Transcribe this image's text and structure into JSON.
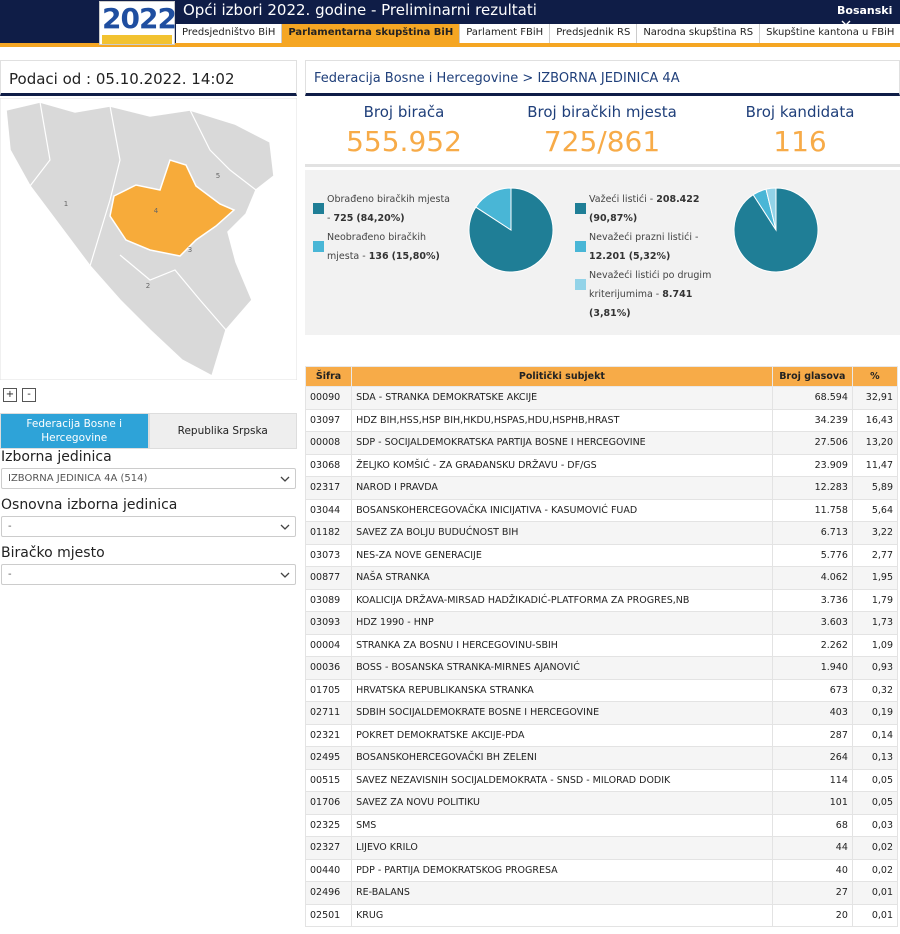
{
  "header": {
    "logo_year": "2022",
    "title": "Opći izbori 2022. godine - Preliminarni rezultati",
    "language": "Bosanski"
  },
  "tabs": [
    "Predsjedništvo BiH",
    "Parlamentarna skupština BiH",
    "Parlament FBiH",
    "Predsjednik RS",
    "Narodna skupština RS",
    "Skupštine kantona u FBiH"
  ],
  "active_tab": 1,
  "sidebar": {
    "data_as_of": "Podaci od : 05.10.2022. 14:02",
    "map_labels": [
      "1",
      "4",
      "3",
      "2",
      "5"
    ],
    "zoom_in": "+",
    "zoom_out": "-",
    "entities": [
      "Federacija Bosne i Hercegovine",
      "Republika Srpska"
    ],
    "filters": [
      {
        "label": "Izborna jedinica",
        "value": "IZBORNA JEDINICA 4A (514)"
      },
      {
        "label": "Osnovna izborna jedinica",
        "value": "-"
      },
      {
        "label": "Biračko mjesto",
        "value": "-"
      }
    ]
  },
  "main": {
    "breadcrumb": "Federacija Bosne i Hercegovine > IZBORNA JEDINICA 4A",
    "stats": [
      {
        "label": "Broj birača",
        "value": "555.952"
      },
      {
        "label": "Broj biračkih mjesta",
        "value": "725/861"
      },
      {
        "label": "Broj kandidata",
        "value": "116"
      }
    ],
    "pies": [
      {
        "slices": [
          {
            "name": "Obrađeno biračkih mjesta -",
            "count": "725",
            "percent": 84.2,
            "percent_label": "(84,20%)",
            "color": "#1f7e96"
          },
          {
            "name": "Neobrađeno biračkih mjesta -",
            "count": "136",
            "percent": 15.8,
            "percent_label": "(15,80%)",
            "color": "#49b6d6"
          }
        ]
      },
      {
        "slices": [
          {
            "name": "Važeći listići -",
            "count": "208.422",
            "percent": 90.87,
            "percent_label": "(90,87%)",
            "color": "#1f7e96"
          },
          {
            "name": "Nevažeći prazni listići -",
            "count": "12.201",
            "percent": 5.32,
            "percent_label": "(5,32%)",
            "color": "#49b6d6"
          },
          {
            "name": "Nevažeći listići po drugim kriterijumima -",
            "count": "8.741",
            "percent": 3.81,
            "percent_label": "(3,81%)",
            "color": "#93d3e8"
          }
        ]
      }
    ]
  },
  "table": {
    "columns": [
      "Šifra",
      "Politički subjekt",
      "Broj glasova",
      "%"
    ],
    "rows": [
      [
        "00090",
        "SDA - STRANKA DEMOKRATSKE AKCIJE",
        "68.594",
        "32,91"
      ],
      [
        "03097",
        "HDZ BIH,HSS,HSP BIH,HKDU,HSPAS,HDU,HSPHB,HRAST",
        "34.239",
        "16,43"
      ],
      [
        "00008",
        "SDP - SOCIJALDEMOKRATSKA PARTIJA BOSNE I HERCEGOVINE",
        "27.506",
        "13,20"
      ],
      [
        "03068",
        "ŽELJKO KOMŠIĆ - ZA GRAĐANSKU DRŽAVU - DF/GS",
        "23.909",
        "11,47"
      ],
      [
        "02317",
        "NAROD I PRAVDA",
        "12.283",
        "5,89"
      ],
      [
        "03044",
        "BOSANSKOHERCEGOVAČKA INICIJATIVA - KASUMOVIĆ FUAD",
        "11.758",
        "5,64"
      ],
      [
        "01182",
        "SAVEZ ZA BOLJU BUDUĆNOST BIH",
        "6.713",
        "3,22"
      ],
      [
        "03073",
        "NES-ZA NOVE GENERACIJE",
        "5.776",
        "2,77"
      ],
      [
        "00877",
        "NAŠA STRANKA",
        "4.062",
        "1,95"
      ],
      [
        "03089",
        "KOALICIJA DRŽAVA-MIRSAD HADŽIKADIĆ-PLATFORMA ZA PROGRES,NB",
        "3.736",
        "1,79"
      ],
      [
        "03093",
        "HDZ 1990 - HNP",
        "3.603",
        "1,73"
      ],
      [
        "00004",
        "STRANKA ZA BOSNU I HERCEGOVINU-SBIH",
        "2.262",
        "1,09"
      ],
      [
        "00036",
        "BOSS - BOSANSKA STRANKA-MIRNES AJANOVIĆ",
        "1.940",
        "0,93"
      ],
      [
        "01705",
        "HRVATSKA REPUBLIKANSKA STRANKA",
        "673",
        "0,32"
      ],
      [
        "02711",
        "SDBIH SOCIJALDEMOKRATE BOSNE I HERCEGOVINE",
        "403",
        "0,19"
      ],
      [
        "02321",
        "POKRET DEMOKRATSKE AKCIJE-PDA",
        "287",
        "0,14"
      ],
      [
        "02495",
        "BOSANSKOHERCEGOVAČKI BH ZELENI",
        "264",
        "0,13"
      ],
      [
        "00515",
        "SAVEZ NEZAVISNIH SOCIJALDEMOKRATA - SNSD - MILORAD DODIK",
        "114",
        "0,05"
      ],
      [
        "01706",
        "SAVEZ ZA NOVU POLITIKU",
        "101",
        "0,05"
      ],
      [
        "02325",
        "SMS",
        "68",
        "0,03"
      ],
      [
        "02327",
        "LIJEVO KRILO",
        "44",
        "0,02"
      ],
      [
        "00440",
        "PDP - PARTIJA DEMOKRATSKOG PROGRESA",
        "40",
        "0,02"
      ],
      [
        "02496",
        "RE-BALANS",
        "27",
        "0,01"
      ],
      [
        "02501",
        "KRUG",
        "20",
        "0,01"
      ]
    ]
  }
}
